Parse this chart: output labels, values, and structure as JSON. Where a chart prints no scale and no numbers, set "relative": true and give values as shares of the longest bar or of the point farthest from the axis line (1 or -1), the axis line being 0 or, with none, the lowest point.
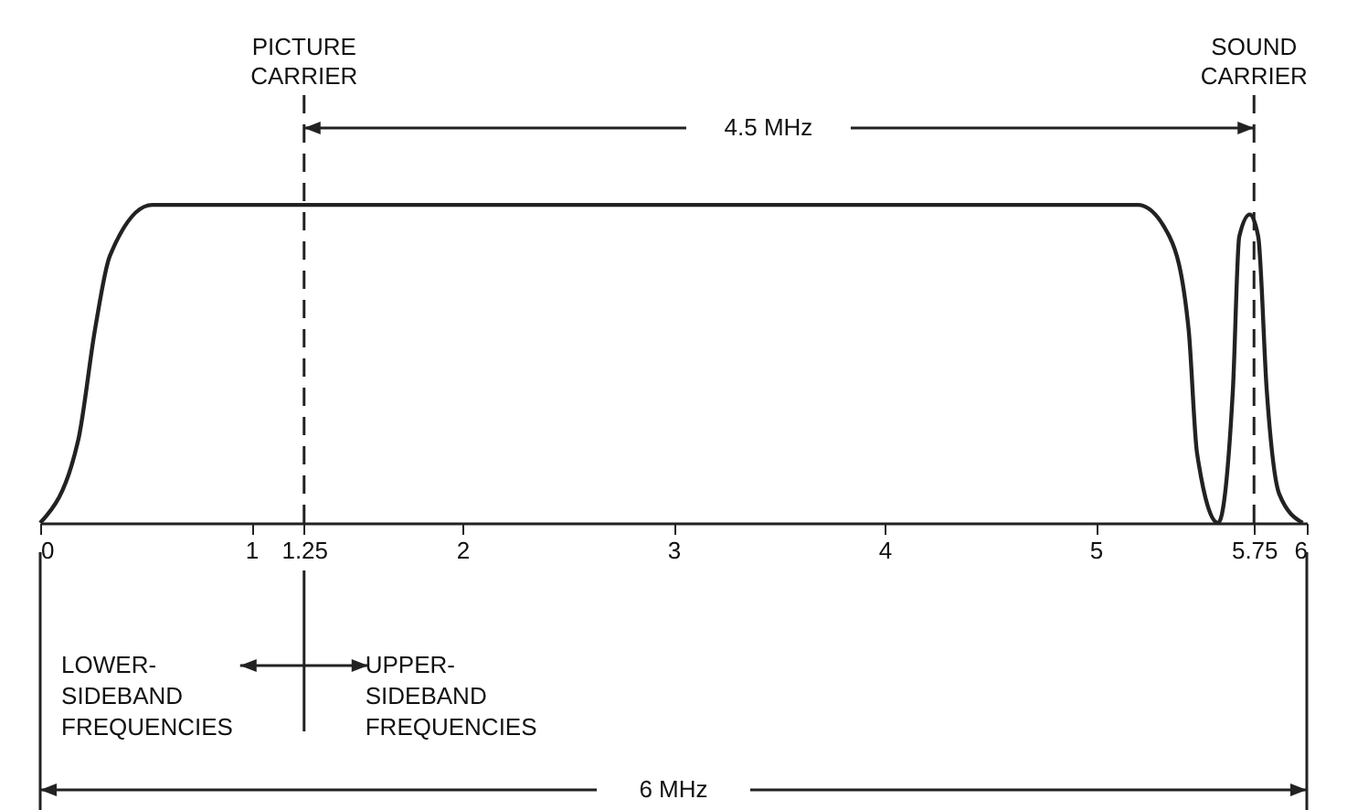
{
  "chart_data": {
    "type": "line",
    "relative": true,
    "x": [
      0,
      0.18,
      0.26,
      0.33,
      0.53,
      5.2,
      5.35,
      5.44,
      5.48,
      5.58,
      5.65,
      5.68,
      5.73,
      5.77,
      5.81,
      5.87,
      5.98
    ],
    "series": [
      {
        "color": "#222222",
        "values": [
          0,
          0.26,
          0.61,
          0.84,
          1,
          1,
          0.9,
          0.61,
          0.22,
          0,
          0.42,
          0.9,
          0.97,
          0.9,
          0.42,
          0.09,
          0
        ]
      }
    ],
    "xlim": [
      0,
      6
    ],
    "xticks": [
      0,
      1,
      1.25,
      2,
      3,
      4,
      5,
      5.75,
      6
    ],
    "ref_lines": [
      {
        "axis": "x",
        "value": 1.25,
        "label": "PICTURE CARRIER",
        "line_style": "dashed"
      },
      {
        "axis": "x",
        "value": 5.75,
        "label": "SOUND CARRIER",
        "line_style": "dashed"
      }
    ],
    "annotations": [
      "4.5 MHz",
      "LOWER-SIDEBAND FREQUENCIES",
      "UPPER-SIDEBAND FREQUENCIES",
      "6 MHz"
    ],
    "marker": "none",
    "grid": false
  }
}
